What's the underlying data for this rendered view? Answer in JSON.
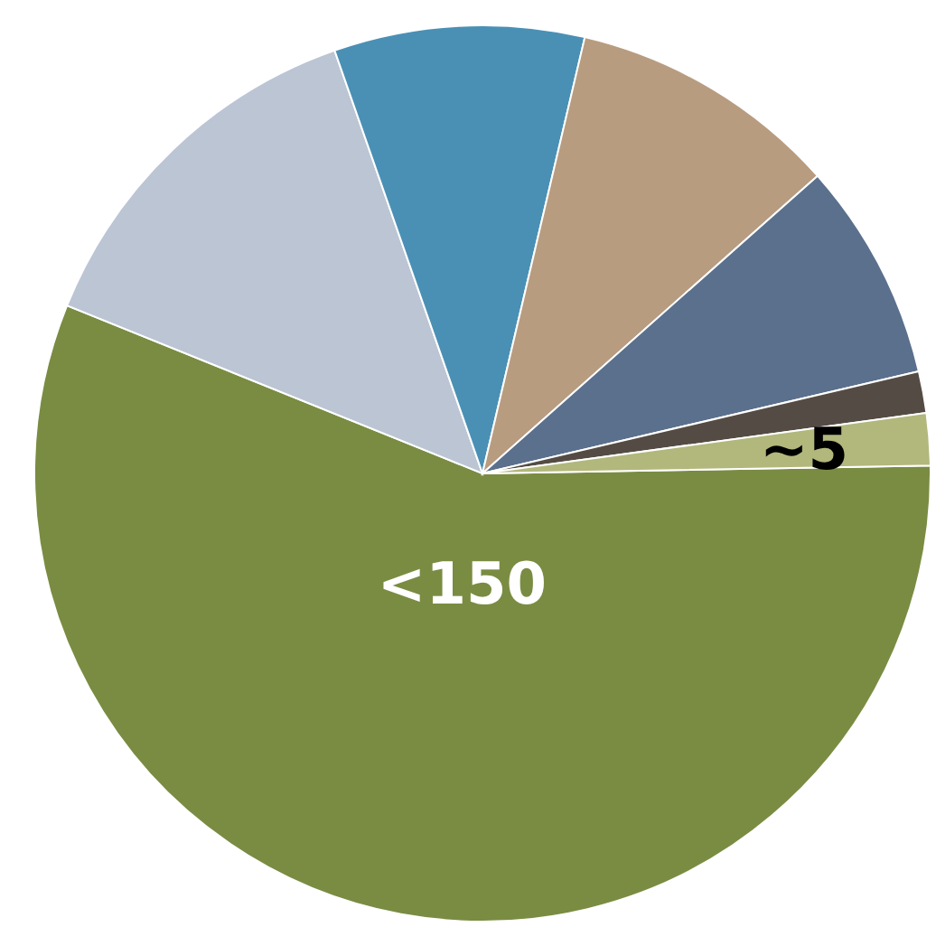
{
  "chart_data": {
    "type": "pie",
    "categories": [
      null,
      null,
      null,
      null,
      null,
      null,
      null
    ],
    "values": [
      150,
      36,
      24,
      26,
      21,
      4,
      5
    ],
    "colors": [
      "#7a8c42",
      "#bcc5d4",
      "#4a90b5",
      "#b89c80",
      "#5a708d",
      "#544c44",
      "#b2b77c"
    ],
    "value_labels": [
      "<150",
      null,
      null,
      null,
      null,
      null,
      "~5"
    ]
  }
}
